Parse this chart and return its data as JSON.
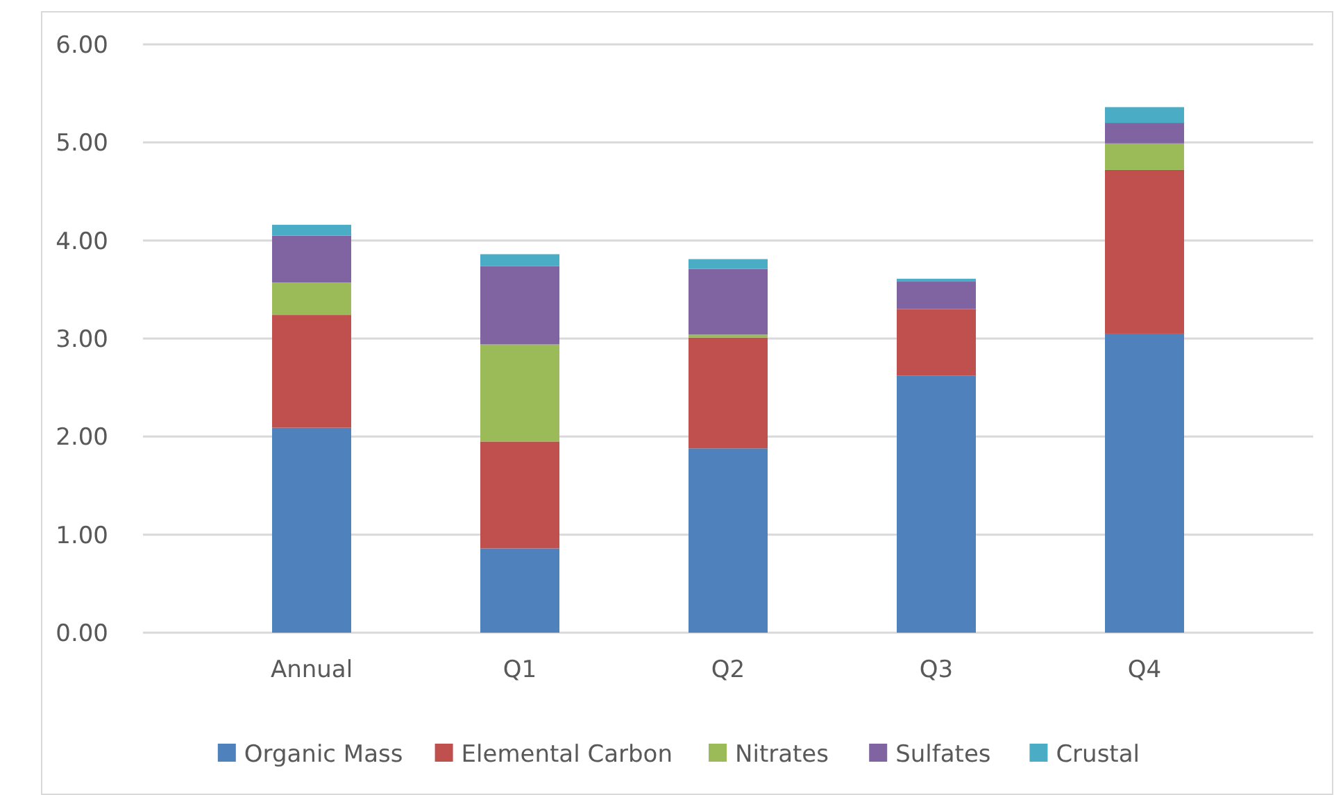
{
  "chart_data": {
    "type": "bar",
    "stacked": true,
    "categories": [
      "Annual",
      "Q1",
      "Q2",
      "Q3",
      "Q4"
    ],
    "series": [
      {
        "name": "Organic Mass",
        "color": "#4f81bd",
        "values": [
          2.09,
          0.86,
          1.88,
          2.62,
          3.05
        ]
      },
      {
        "name": "Elemental Carbon",
        "color": "#c0504d",
        "values": [
          1.15,
          1.09,
          1.13,
          0.68,
          1.67
        ]
      },
      {
        "name": "Nitrates",
        "color": "#9bbb59",
        "values": [
          0.33,
          0.99,
          0.03,
          0,
          0.27
        ]
      },
      {
        "name": "Sulfates",
        "color": "#8064a2",
        "values": [
          0.48,
          0.8,
          0.67,
          0.28,
          0.21
        ]
      },
      {
        "name": "Crustal",
        "color": "#4bacc6",
        "values": [
          0.11,
          0.12,
          0.1,
          0.03,
          0.16
        ]
      }
    ],
    "ylim": [
      0,
      6
    ],
    "yticks": [
      {
        "value": 0,
        "label": "0.00"
      },
      {
        "value": 1,
        "label": "1.00"
      },
      {
        "value": 2,
        "label": "2.00"
      },
      {
        "value": 3,
        "label": "3.00"
      },
      {
        "value": 4,
        "label": "4.00"
      },
      {
        "value": 5,
        "label": "5.00"
      },
      {
        "value": 6,
        "label": "6.00"
      }
    ],
    "grid": "y",
    "legend": "bottom"
  }
}
